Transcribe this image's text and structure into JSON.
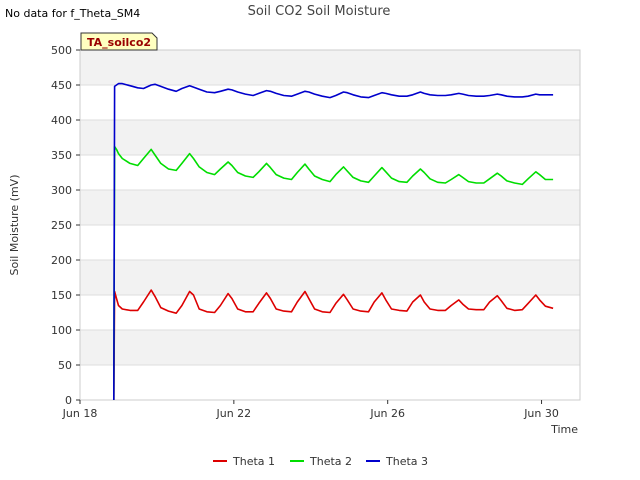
{
  "notice": "No data for f_Theta_SM4",
  "chart_data": {
    "type": "line",
    "title": "Soil CO2 Soil Moisture",
    "xlabel": "Time",
    "ylabel": "Soil Moisture (mV)",
    "site_label": "TA_soilco2",
    "ylim": [
      0,
      500
    ],
    "yticks": [
      0,
      50,
      100,
      150,
      200,
      250,
      300,
      350,
      400,
      450,
      500
    ],
    "xlim": [
      0,
      13.0
    ],
    "xticks": [
      {
        "label": "Jun 18",
        "day": 0
      },
      {
        "label": "Jun 22",
        "day": 4
      },
      {
        "label": "Jun 26",
        "day": 8
      },
      {
        "label": "Jun 30",
        "day": 12
      }
    ],
    "legend_position": "bottom",
    "series": [
      {
        "name": "Theta 1",
        "color": "#dd0000",
        "start_day": 0.85,
        "x": [
          0.88,
          0.9,
          0.95,
          1.0,
          1.1,
          1.3,
          1.5,
          1.65,
          1.85,
          1.95,
          2.1,
          2.3,
          2.5,
          2.65,
          2.85,
          2.95,
          3.1,
          3.3,
          3.5,
          3.65,
          3.85,
          3.95,
          4.1,
          4.3,
          4.5,
          4.65,
          4.85,
          4.95,
          5.1,
          5.3,
          5.5,
          5.65,
          5.85,
          5.95,
          6.1,
          6.3,
          6.5,
          6.65,
          6.85,
          6.95,
          7.1,
          7.3,
          7.5,
          7.65,
          7.85,
          7.95,
          8.1,
          8.3,
          8.5,
          8.65,
          8.85,
          8.95,
          9.1,
          9.3,
          9.5,
          9.65,
          9.85,
          9.95,
          10.1,
          10.3,
          10.5,
          10.65,
          10.85,
          10.95,
          11.1,
          11.3,
          11.5,
          11.65,
          11.85,
          11.95,
          12.1,
          12.3
        ],
        "y": [
          0,
          155,
          145,
          135,
          130,
          128,
          128,
          140,
          157,
          148,
          132,
          127,
          124,
          135,
          155,
          150,
          130,
          126,
          125,
          135,
          152,
          145,
          130,
          126,
          126,
          138,
          153,
          145,
          130,
          127,
          126,
          140,
          155,
          145,
          130,
          126,
          125,
          138,
          151,
          143,
          130,
          127,
          126,
          140,
          153,
          143,
          130,
          128,
          127,
          140,
          150,
          140,
          130,
          128,
          128,
          135,
          143,
          137,
          130,
          129,
          129,
          140,
          149,
          142,
          131,
          128,
          129,
          138,
          150,
          143,
          134,
          131
        ]
      },
      {
        "name": "Theta 2",
        "color": "#00dd00",
        "start_day": 0.85,
        "x": [
          0.88,
          0.9,
          0.95,
          1.0,
          1.1,
          1.3,
          1.5,
          1.65,
          1.85,
          1.95,
          2.1,
          2.3,
          2.5,
          2.65,
          2.85,
          2.95,
          3.1,
          3.3,
          3.5,
          3.65,
          3.85,
          3.95,
          4.1,
          4.3,
          4.5,
          4.65,
          4.85,
          4.95,
          5.1,
          5.3,
          5.5,
          5.65,
          5.85,
          5.95,
          6.1,
          6.3,
          6.5,
          6.65,
          6.85,
          6.95,
          7.1,
          7.3,
          7.5,
          7.65,
          7.85,
          7.95,
          8.1,
          8.3,
          8.5,
          8.65,
          8.85,
          8.95,
          9.1,
          9.3,
          9.5,
          9.65,
          9.85,
          9.95,
          10.1,
          10.3,
          10.5,
          10.65,
          10.85,
          10.95,
          11.1,
          11.3,
          11.5,
          11.65,
          11.85,
          11.95,
          12.1,
          12.3
        ],
        "y": [
          0,
          362,
          358,
          352,
          345,
          338,
          335,
          345,
          358,
          350,
          338,
          330,
          328,
          338,
          352,
          345,
          333,
          325,
          322,
          330,
          340,
          335,
          325,
          320,
          318,
          326,
          338,
          332,
          322,
          317,
          315,
          325,
          337,
          330,
          320,
          315,
          312,
          322,
          333,
          327,
          318,
          313,
          311,
          320,
          332,
          326,
          317,
          312,
          311,
          320,
          330,
          325,
          316,
          311,
          310,
          315,
          322,
          318,
          312,
          310,
          310,
          316,
          324,
          320,
          313,
          310,
          308,
          316,
          326,
          322,
          315,
          315
        ]
      },
      {
        "name": "Theta 3",
        "color": "#0000cc",
        "start_day": 0.85,
        "x": [
          0.88,
          0.9,
          0.95,
          1.0,
          1.1,
          1.3,
          1.5,
          1.65,
          1.85,
          1.95,
          2.1,
          2.3,
          2.5,
          2.65,
          2.85,
          2.95,
          3.1,
          3.3,
          3.5,
          3.65,
          3.85,
          3.95,
          4.1,
          4.3,
          4.5,
          4.65,
          4.85,
          4.95,
          5.1,
          5.3,
          5.5,
          5.65,
          5.85,
          5.95,
          6.1,
          6.3,
          6.5,
          6.65,
          6.85,
          6.95,
          7.1,
          7.3,
          7.5,
          7.65,
          7.85,
          7.95,
          8.1,
          8.3,
          8.5,
          8.65,
          8.85,
          8.95,
          9.1,
          9.3,
          9.5,
          9.65,
          9.85,
          9.95,
          10.1,
          10.3,
          10.5,
          10.65,
          10.85,
          10.95,
          11.1,
          11.3,
          11.5,
          11.65,
          11.85,
          11.95,
          12.1,
          12.3
        ],
        "y": [
          0,
          448,
          450,
          452,
          452,
          449,
          446,
          445,
          450,
          451,
          448,
          444,
          441,
          445,
          449,
          447,
          444,
          440,
          439,
          441,
          444,
          443,
          440,
          437,
          435,
          438,
          442,
          441,
          438,
          435,
          434,
          437,
          441,
          440,
          437,
          434,
          432,
          435,
          440,
          439,
          436,
          433,
          432,
          435,
          439,
          438,
          436,
          434,
          434,
          436,
          440,
          438,
          436,
          435,
          435,
          436,
          438,
          437,
          435,
          434,
          434,
          435,
          437,
          436,
          434,
          433,
          433,
          434,
          437,
          436,
          436,
          436
        ]
      }
    ]
  }
}
